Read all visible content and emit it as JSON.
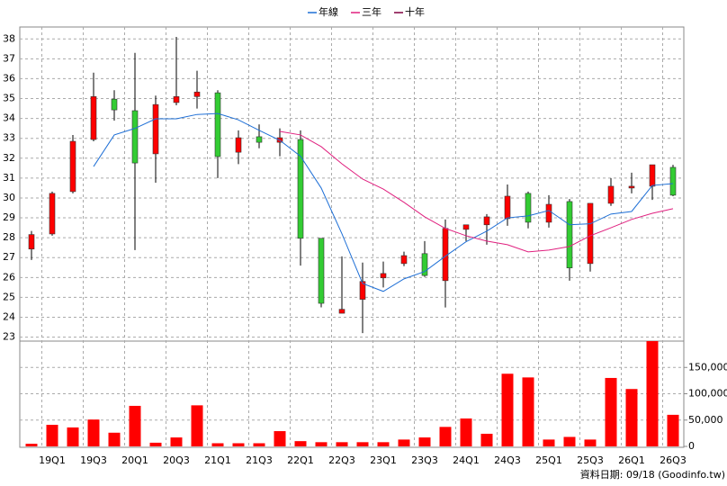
{
  "chart_data": {
    "type": "candlestick",
    "categories": [
      null,
      "19Q1",
      null,
      "19Q3",
      null,
      "20Q1",
      null,
      "20Q3",
      null,
      "21Q1",
      null,
      "21Q3",
      null,
      "22Q1",
      null,
      "22Q3",
      null,
      "23Q1",
      null,
      "23Q3",
      null,
      "24Q1",
      null,
      "24Q3",
      null,
      "25Q1",
      null,
      "25Q3",
      null,
      "26Q1",
      null,
      "26Q3"
    ],
    "open": [
      27.43,
      28.19,
      30.32,
      32.94,
      34.97,
      34.39,
      32.22,
      34.8,
      35.1,
      35.29,
      32.3,
      33.08,
      32.8,
      32.94,
      27.97,
      24.2,
      24.9,
      25.98,
      26.7,
      27.2,
      25.84,
      28.42,
      28.65,
      28.96,
      30.23,
      28.78,
      29.82,
      26.7,
      29.73,
      30.5,
      30.59,
      31.54
    ],
    "high": [
      28.34,
      30.32,
      33.17,
      36.3,
      35.42,
      37.3,
      35.15,
      38.1,
      36.4,
      35.42,
      33.4,
      33.7,
      33.5,
      33.4,
      27.97,
      27.06,
      26.75,
      26.8,
      27.3,
      27.83,
      28.92,
      28.65,
      29.19,
      30.68,
      30.32,
      30.14,
      29.95,
      29.73,
      31.0,
      31.27,
      31.67,
      31.67
    ],
    "low": [
      26.88,
      28.1,
      30.23,
      32.85,
      33.89,
      27.38,
      30.77,
      34.66,
      34.5,
      31.0,
      31.7,
      32.5,
      32.1,
      26.6,
      24.5,
      24.2,
      23.2,
      25.5,
      26.57,
      26.03,
      24.49,
      27.83,
      27.65,
      28.6,
      28.47,
      28.51,
      25.84,
      26.3,
      29.6,
      30.23,
      29.9,
      30.09
    ],
    "close": [
      28.16,
      30.23,
      32.85,
      35.1,
      34.43,
      31.76,
      34.7,
      35.1,
      35.33,
      32.08,
      33.03,
      32.8,
      33.03,
      27.97,
      24.7,
      24.4,
      25.8,
      26.2,
      27.1,
      26.1,
      28.47,
      28.65,
      29.05,
      30.09,
      28.78,
      29.68,
      26.48,
      29.73,
      30.59,
      30.59,
      31.67,
      30.14
    ],
    "up_color": "#ff0000",
    "down_color": "#33cc33",
    "series": [
      {
        "name": "年線",
        "color": "#1e6fd6",
        "values": [
          null,
          null,
          null,
          31.58,
          33.17,
          33.5,
          33.98,
          33.98,
          34.2,
          34.25,
          33.93,
          33.4,
          32.9,
          32.1,
          30.5,
          28.2,
          25.7,
          25.3,
          25.93,
          26.3,
          27.07,
          27.8,
          28.33,
          29.0,
          29.1,
          29.37,
          28.65,
          28.7,
          29.19,
          29.32,
          30.63,
          30.72
        ]
      },
      {
        "name": "三年",
        "color": "#e0207f",
        "values": [
          null,
          null,
          null,
          null,
          null,
          null,
          null,
          null,
          null,
          null,
          null,
          null,
          33.35,
          33.17,
          32.58,
          31.72,
          30.95,
          30.45,
          29.78,
          29.05,
          28.47,
          28.1,
          27.83,
          27.65,
          27.29,
          27.38,
          27.56,
          28.1,
          28.5,
          28.92,
          29.23,
          29.46
        ]
      },
      {
        "name": "十年",
        "color": "#800040",
        "values": [
          null,
          null,
          null,
          null,
          null,
          null,
          null,
          null,
          null,
          null,
          null,
          null,
          null,
          null,
          null,
          null,
          null,
          null,
          null,
          null,
          null,
          null,
          null,
          null,
          null,
          null,
          null,
          null,
          null,
          null,
          null,
          null
        ]
      }
    ],
    "ylim": [
      22.8,
      38.6
    ],
    "yticks": [
      23,
      24,
      25,
      26,
      27,
      28,
      29,
      30,
      31,
      32,
      33,
      34,
      35,
      36,
      37,
      38
    ],
    "grid": true,
    "volume": {
      "color": "#ff0000",
      "values": [
        5000,
        41000,
        36000,
        51000,
        26000,
        77000,
        7000,
        17000,
        78000,
        6000,
        6000,
        6000,
        29000,
        10000,
        8000,
        8000,
        8000,
        8000,
        13000,
        17000,
        37000,
        53000,
        24000,
        138000,
        131000,
        13000,
        18000,
        13000,
        130000,
        109000,
        200000,
        60000
      ],
      "ylim": [
        0,
        200000
      ],
      "yticks": [
        0,
        {
          "value": 50000,
          "label": "50,000"
        },
        {
          "value": 100000,
          "label": "100,000"
        },
        {
          "value": 150000,
          "label": "150,000"
        }
      ]
    },
    "source": "資料日期: 09/18 (Goodinfo.tw)"
  }
}
